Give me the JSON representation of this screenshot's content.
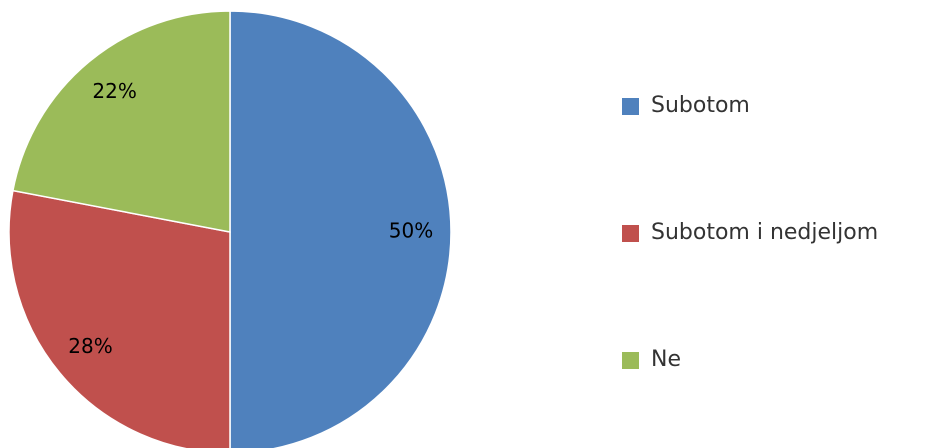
{
  "chart_data": {
    "type": "pie",
    "categories": [
      "Subotom",
      "Subotom i nedjeljom",
      "Ne"
    ],
    "values": [
      50,
      28,
      22
    ],
    "value_labels": [
      "50%",
      "28%",
      "22%"
    ],
    "colors": [
      "#4f81bd",
      "#c0504d",
      "#9bbb59"
    ],
    "legend": "right"
  }
}
